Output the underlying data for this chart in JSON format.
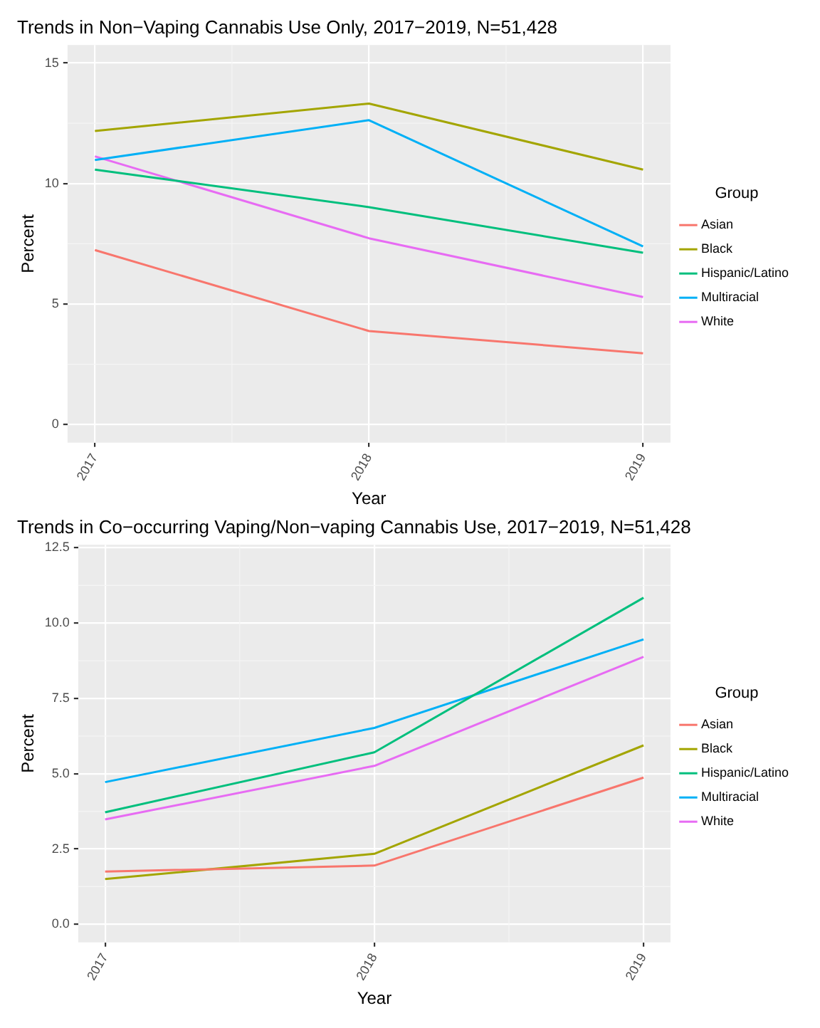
{
  "chart_data": [
    {
      "type": "line",
      "title": "Trends in Non−Vaping Cannabis Use Only, 2017−2019, N=51,428",
      "xlabel": "Year",
      "ylabel": "Percent",
      "legend_title": "Group",
      "legend": "right",
      "grid": true,
      "x": [
        2017,
        2018,
        2019
      ],
      "xlim": [
        2016.9,
        2019.1
      ],
      "xticks": [
        2017,
        2018,
        2019
      ],
      "ylim": [
        -0.75,
        15.75
      ],
      "yticks": [
        0,
        5,
        10,
        15
      ],
      "series": [
        {
          "name": "Asian",
          "color": "#f8766d",
          "values": [
            7.24,
            3.88,
            2.96
          ]
        },
        {
          "name": "Black",
          "color": "#a3a500",
          "values": [
            12.18,
            13.32,
            10.58
          ]
        },
        {
          "name": "Hispanic/Latino",
          "color": "#00bf7d",
          "values": [
            10.58,
            9.02,
            7.13
          ]
        },
        {
          "name": "Multiracial",
          "color": "#00b0f6",
          "values": [
            10.98,
            12.63,
            7.39
          ]
        },
        {
          "name": "White",
          "color": "#e76bf3",
          "values": [
            11.13,
            7.73,
            5.29
          ]
        }
      ]
    },
    {
      "type": "line",
      "title": "Trends in Co−occurring Vaping/Non−vaping Cannabis Use, 2017−2019, N=51,428",
      "xlabel": "Year",
      "ylabel": "Percent",
      "legend_title": "Group",
      "legend": "right",
      "grid": true,
      "x": [
        2017,
        2018,
        2019
      ],
      "xlim": [
        2016.9,
        2019.1
      ],
      "xticks": [
        2017,
        2018,
        2019
      ],
      "ylim": [
        -0.6,
        12.6
      ],
      "yticks": [
        {
          "value": 0,
          "label": "0.0"
        },
        {
          "value": 2.5,
          "label": "2.5"
        },
        {
          "value": 5,
          "label": "5.0"
        },
        {
          "value": 7.5,
          "label": "7.5"
        },
        {
          "value": 10,
          "label": "10.0"
        },
        {
          "value": 12.5,
          "label": "12.5"
        }
      ],
      "series": [
        {
          "name": "Asian",
          "color": "#f8766d",
          "values": [
            1.75,
            1.95,
            4.87
          ]
        },
        {
          "name": "Black",
          "color": "#a3a500",
          "values": [
            1.5,
            2.34,
            5.94
          ]
        },
        {
          "name": "Hispanic/Latino",
          "color": "#00bf7d",
          "values": [
            3.72,
            5.71,
            10.84
          ]
        },
        {
          "name": "Multiracial",
          "color": "#00b0f6",
          "values": [
            4.72,
            6.52,
            9.46
          ]
        },
        {
          "name": "White",
          "color": "#e76bf3",
          "values": [
            3.48,
            5.26,
            8.88
          ]
        }
      ]
    }
  ]
}
